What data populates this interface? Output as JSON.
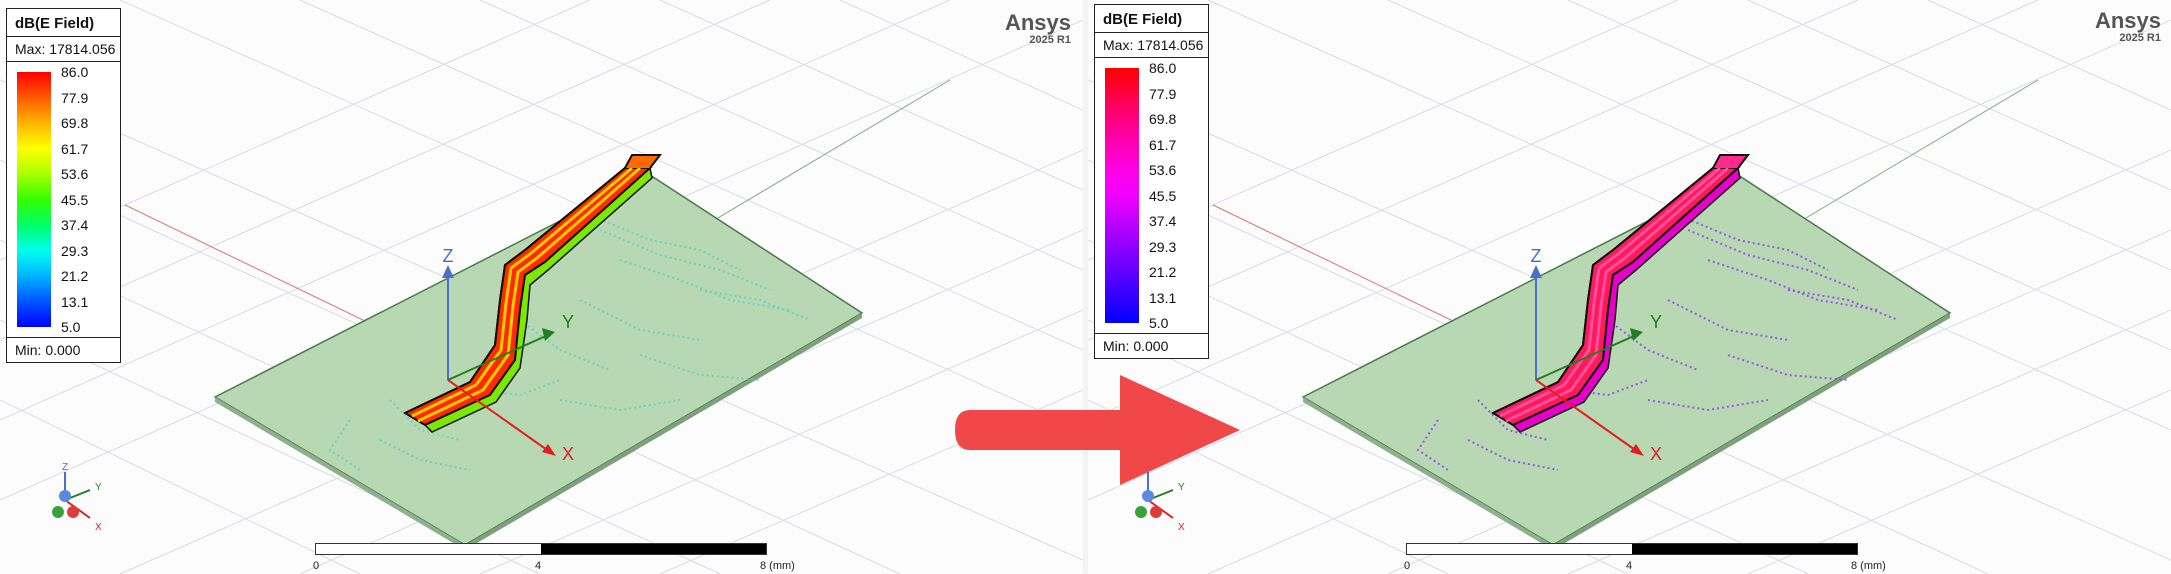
{
  "left": {
    "legend": {
      "title": "dB(E Field)",
      "max_label": "Max: 17814.056",
      "min_label": "Min:  0.000",
      "ticks": [
        "86.0",
        "77.9",
        "69.8",
        "61.7",
        "53.6",
        "45.5",
        "37.4",
        "29.3",
        "21.2",
        "13.1",
        "5.0"
      ],
      "gradient": [
        "#ff0000",
        "#ff5a00",
        "#ffb400",
        "#ffff00",
        "#aaff00",
        "#33ff00",
        "#00ff66",
        "#00ffee",
        "#00b4ff",
        "#0055ff",
        "#0000ff"
      ]
    },
    "brand": {
      "name": "Ansys",
      "version": "2025 R1"
    },
    "axes": {
      "z": "Z",
      "y": "Y",
      "x": "X"
    },
    "triad": {
      "z": "Z",
      "y": "Y",
      "x": "X"
    },
    "scale": {
      "ticks": [
        "0",
        "4",
        "8 (mm)"
      ]
    },
    "trace_stripe_color": "#ff7a00"
  },
  "right": {
    "legend": {
      "title": "dB(E Field)",
      "max_label": "Max: 17814.056",
      "min_label": "Min:  0.000",
      "ticks": [
        "86.0",
        "77.9",
        "69.8",
        "61.7",
        "53.6",
        "45.5",
        "37.4",
        "29.3",
        "21.2",
        "13.1",
        "5.0"
      ],
      "gradient": [
        "#ff0000",
        "#ff0040",
        "#ff0080",
        "#ff00b4",
        "#ff00e6",
        "#f000ff",
        "#c000ff",
        "#9000ff",
        "#6000ff",
        "#3000ff",
        "#0000ff"
      ]
    },
    "brand": {
      "name": "Ansys",
      "version": "2025 R1"
    },
    "axes": {
      "z": "Z",
      "y": "Y",
      "x": "X"
    },
    "triad": {
      "z": "Z",
      "y": "Y",
      "x": "X"
    },
    "scale": {
      "ticks": [
        "0",
        "4",
        "8 (mm)"
      ]
    },
    "trace_stripe_color": "#ff1a8c"
  },
  "colors": {
    "board": "#b7d8b3",
    "board_edge": "#4a7a4a",
    "trace_body": "#ff2a00",
    "grid": "#d4d8e0",
    "arrow": "#f04848",
    "axis_x": "#e02020",
    "axis_y": "#208020",
    "axis_z": "#4a6fd0"
  }
}
